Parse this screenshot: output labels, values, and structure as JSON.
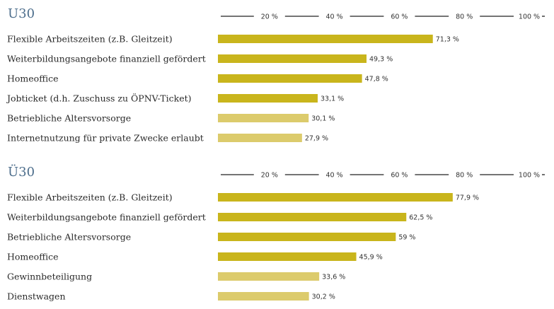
{
  "chart_data": [
    {
      "type": "bar",
      "title": "U30",
      "categories": [
        "Flexible Arbeitszeiten (z.B. Gleitzeit)",
        "Weiterbildungsangebote finanziell gefördert",
        "Homeoffice",
        "Jobticket (d.h. Zuschuss zu ÖPNV-Ticket)",
        "Betriebliche Altersvorsorge",
        "Internetnutzung für private Zwecke erlaubt"
      ],
      "values": [
        71.3,
        49.3,
        47.8,
        33.1,
        30.1,
        27.9
      ],
      "value_labels": [
        "71,3 %",
        "49,3 %",
        "47,8 %",
        "33,1 %",
        "30,1 %",
        "27,9 %"
      ],
      "colors": [
        "#c9b51c",
        "#c9b51c",
        "#c9b51c",
        "#c9b51c",
        "#dccb6c",
        "#dccb6c"
      ],
      "xlim": [
        0,
        100
      ],
      "xticks": [
        {
          "value": 20,
          "label": "20 %"
        },
        {
          "value": 40,
          "label": "40 %"
        },
        {
          "value": 60,
          "label": "60 %"
        },
        {
          "value": 80,
          "label": "80 %"
        },
        {
          "value": 100,
          "label": "100 %"
        }
      ]
    },
    {
      "type": "bar",
      "title": "Ü30",
      "categories": [
        "Flexible Arbeitszeiten (z.B. Gleitzeit)",
        "Weiterbildungsangebote finanziell gefördert",
        "Betriebliche Altersvorsorge",
        "Homeoffice",
        "Gewinnbeteiligung",
        "Dienstwagen"
      ],
      "values": [
        77.9,
        62.5,
        59,
        45.9,
        33.6,
        30.2
      ],
      "value_labels": [
        "77,9 %",
        "62,5 %",
        "59 %",
        "45,9 %",
        "33,6 %",
        "30,2 %"
      ],
      "colors": [
        "#c9b51c",
        "#c9b51c",
        "#c9b51c",
        "#c9b51c",
        "#dccb6c",
        "#dccb6c"
      ],
      "xlim": [
        0,
        100
      ],
      "xticks": [
        {
          "value": 20,
          "label": "20 %"
        },
        {
          "value": 40,
          "label": "40 %"
        },
        {
          "value": 60,
          "label": "60 %"
        },
        {
          "value": 80,
          "label": "80 %"
        },
        {
          "value": 100,
          "label": "100 %"
        }
      ]
    }
  ]
}
